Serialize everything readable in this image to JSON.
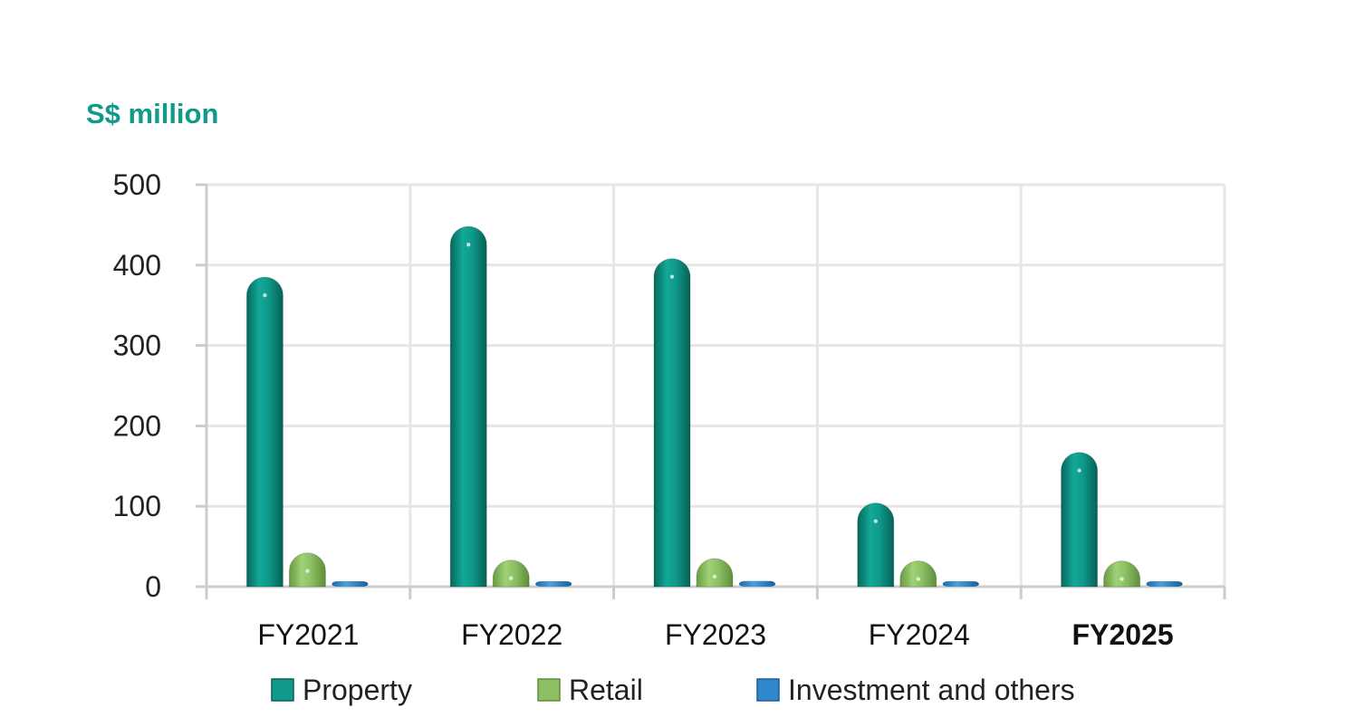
{
  "chart_data": {
    "type": "bar",
    "unit_label": "S$ million",
    "categories": [
      "FY2021",
      "FY2022",
      "FY2023",
      "FY2024",
      "FY2025"
    ],
    "highlight_category": "FY2025",
    "series": [
      {
        "name": "Property",
        "values": [
          385,
          448,
          408,
          104,
          167
        ]
      },
      {
        "name": "Retail",
        "values": [
          42,
          33,
          35,
          32,
          32
        ]
      },
      {
        "name": "Investment and others",
        "values": [
          5,
          6,
          7,
          5,
          4
        ]
      }
    ],
    "y_ticks": [
      "0",
      "100",
      "200",
      "300",
      "400",
      "500"
    ],
    "ylim": [
      0,
      500
    ],
    "grid": true,
    "legend_position": "bottom",
    "colors": {
      "Property": "#0f9a8a",
      "Retail": "#8cc063",
      "Investment and others": "#2f88cc",
      "accent": "#0f9a8a",
      "grid": "#e6e6e6",
      "axis": "#cccccc"
    }
  }
}
